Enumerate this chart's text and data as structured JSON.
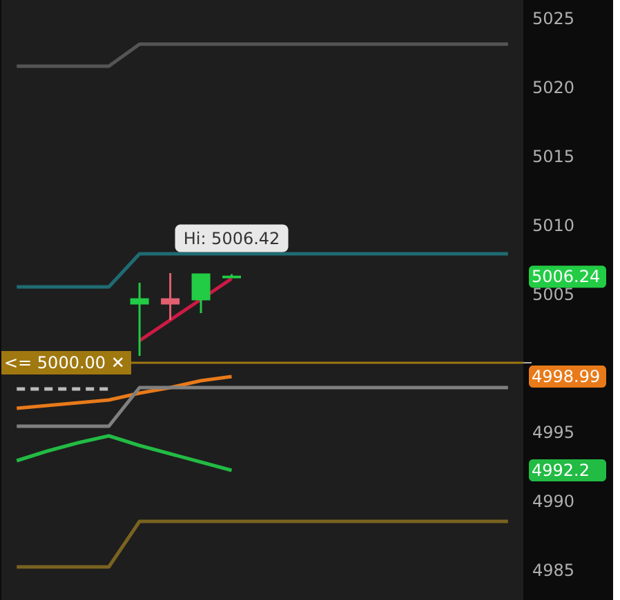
{
  "chart_data": {
    "type": "candlestick",
    "categories": [
      null,
      null,
      null,
      null,
      null,
      null,
      null,
      null,
      null,
      null,
      null,
      null,
      null,
      null,
      null,
      null,
      null
    ],
    "ohlc": [
      null,
      null,
      null,
      null,
      [
        5004.3,
        5005.8,
        5000.5,
        5004.6
      ],
      [
        5004.6,
        5006.5,
        5003.1,
        5004.3
      ],
      [
        5004.6,
        5006.4,
        5003.6,
        5006.4
      ],
      [
        5006.2,
        5006.42,
        5006.2,
        5006.24
      ],
      null,
      null,
      null,
      null,
      null,
      null,
      null,
      null,
      null
    ],
    "colors": [
      null,
      null,
      null,
      null,
      "#22cc44",
      "#e06070",
      "#22cc44",
      "#22cc44",
      null,
      null,
      null,
      null,
      null,
      null,
      null,
      null,
      null
    ],
    "series": [
      {
        "type": "line",
        "color": "#555555",
        "values": [
          5021.5,
          5021.5,
          5021.5,
          5021.5,
          5023.1,
          5023.1,
          5023.1,
          5023.1,
          5023.1,
          5023.1,
          5023.1,
          5023.1,
          5023.1,
          5023.1,
          5023.1,
          5023.1,
          5023.1
        ]
      },
      {
        "type": "line",
        "color": "#1f6b73",
        "values": [
          5005.5,
          5005.5,
          5005.5,
          5005.5,
          5007.9,
          5007.9,
          5007.9,
          5007.9,
          5007.9,
          5007.9,
          5007.9,
          5007.9,
          5007.9,
          5007.9,
          5007.9,
          5007.9,
          5007.9
        ]
      },
      {
        "type": "line",
        "color": "#e87a1a",
        "values": [
          4996.7,
          4996.9,
          4997.1,
          4997.3,
          4997.8,
          4998.2,
          4998.7,
          4999.0,
          null,
          null,
          null,
          null,
          null,
          null,
          null,
          null,
          null
        ]
      },
      {
        "type": "line",
        "color": "#808080",
        "values": [
          4995.4,
          4995.4,
          4995.4,
          4995.4,
          4998.2,
          4998.2,
          4998.2,
          4998.2,
          4998.2,
          4998.2,
          4998.2,
          4998.2,
          4998.2,
          4998.2,
          4998.2,
          4998.2,
          4998.2
        ]
      },
      {
        "type": "line",
        "color": "#bbbbbb",
        "line_style": "dashed",
        "values": [
          4998.1,
          4998.1,
          4998.1,
          4998.1,
          null,
          null,
          null,
          null,
          null,
          null,
          null,
          null,
          null,
          null,
          null,
          null,
          null
        ]
      },
      {
        "type": "line",
        "color": "#22bb44",
        "values": [
          4992.9,
          4993.6,
          4994.2,
          4994.7,
          4994.0,
          4993.4,
          4992.8,
          4992.2,
          null,
          null,
          null,
          null,
          null,
          null,
          null,
          null,
          null
        ]
      },
      {
        "type": "line",
        "color": "#7a6320",
        "values": [
          4985.2,
          4985.2,
          4985.2,
          4985.2,
          4988.5,
          4988.5,
          4988.5,
          4988.5,
          4988.5,
          4988.5,
          4988.5,
          4988.5,
          4988.5,
          4988.5,
          4988.5,
          4988.5,
          4988.5
        ]
      },
      {
        "type": "line",
        "color": "#cc1a44",
        "values": [
          null,
          null,
          null,
          null,
          5001.6,
          5003.1,
          5004.6,
          5006.1,
          null,
          null,
          null,
          null,
          null,
          null,
          null,
          null,
          null
        ]
      }
    ],
    "ylim": [
      4982.8,
      5026.3
    ],
    "yticks": [
      4985,
      4990,
      4995,
      {
        "value": 5000,
        "label": null
      },
      5005,
      5010,
      5015,
      5020,
      5025
    ],
    "tick_labels": "y",
    "ref_lines": [
      {
        "axis": "y",
        "value": 5000.0,
        "label": "<= 5000.00 ✕",
        "color": "#a07810"
      }
    ],
    "annotations": [
      {
        "text": "Hi: 5006.42",
        "y": 5006.42
      },
      "5006.24",
      "4998.99",
      "4992.2"
    ]
  }
}
